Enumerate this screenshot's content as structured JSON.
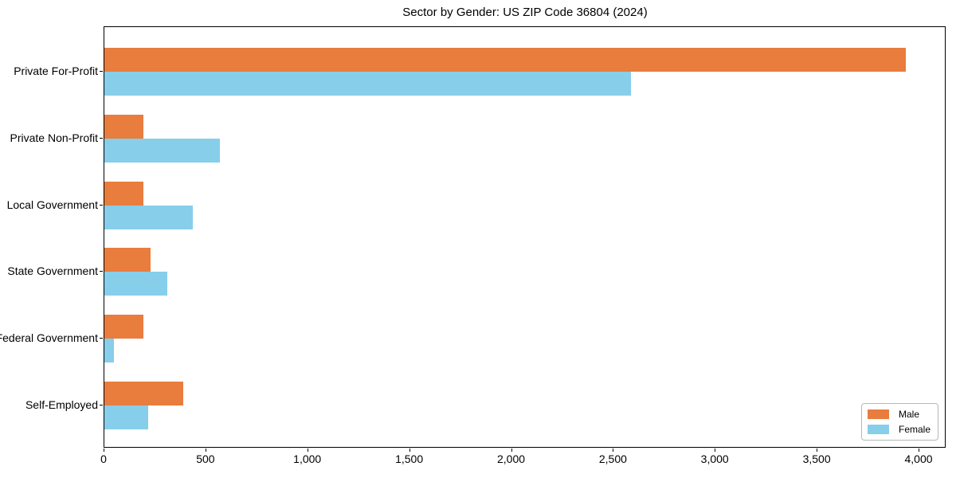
{
  "figure": {
    "background": "#ffffff"
  },
  "chart_data": {
    "type": "bar",
    "orientation": "horizontal",
    "title": "Sector by Gender: US ZIP Code 36804 (2024)",
    "categories": [
      "Private For-Profit",
      "Private Non-Profit",
      "Local Government",
      "State Government",
      "Federal Government",
      "Self-Employed"
    ],
    "series": [
      {
        "name": "Male",
        "color": "#e87d3e",
        "values": [
          3935,
          190,
          190,
          228,
          190,
          385
        ]
      },
      {
        "name": "Female",
        "color": "#87ceeb",
        "values": [
          2585,
          565,
          435,
          310,
          45,
          215
        ]
      }
    ],
    "xlabel": "",
    "ylabel": "",
    "xlim": [
      0,
      4133
    ],
    "xticks": [
      {
        "value": 0,
        "label": "0"
      },
      {
        "value": 500,
        "label": "500"
      },
      {
        "value": 1000,
        "label": "1,000"
      },
      {
        "value": 1500,
        "label": "1,500"
      },
      {
        "value": 2000,
        "label": "2,000"
      },
      {
        "value": 2500,
        "label": "2,500"
      },
      {
        "value": 3000,
        "label": "3,000"
      },
      {
        "value": 3500,
        "label": "3,500"
      },
      {
        "value": 4000,
        "label": "4,000"
      }
    ],
    "grid": false,
    "legend": {
      "position": "lower right"
    }
  }
}
